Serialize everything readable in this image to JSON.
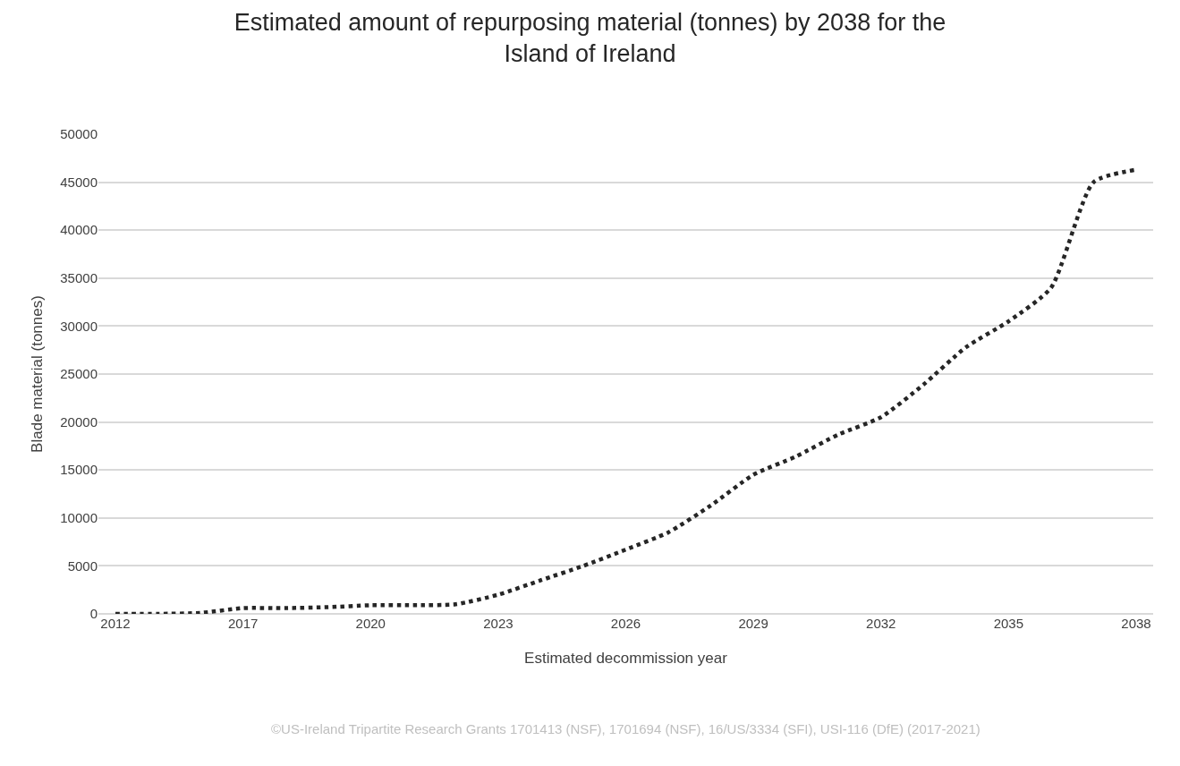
{
  "chart_data": {
    "type": "line",
    "title": "Estimated amount of repurposing material (tonnes) by 2038 for the Island of Ireland",
    "xlabel": "Estimated decommission year",
    "ylabel": "Blade material (tonnes)",
    "categories": [
      "2012",
      null,
      null,
      "2017",
      null,
      null,
      "2020",
      null,
      null,
      "2023",
      null,
      null,
      "2026",
      null,
      null,
      "2029",
      null,
      null,
      "2032",
      null,
      null,
      "2035",
      null,
      null,
      "2038"
    ],
    "series": [
      {
        "color": "#262626",
        "values": [
          0,
          0,
          100,
          600,
          600,
          700,
          900,
          900,
          1000,
          2000,
          3500,
          5000,
          6700,
          8500,
          11300,
          14500,
          16400,
          18700,
          20500,
          23900,
          27800,
          30500,
          34000,
          45000,
          46300
        ]
      }
    ],
    "ylim": [
      0,
      50000
    ],
    "yticks": [
      0,
      5000,
      10000,
      15000,
      20000,
      25000,
      30000,
      35000,
      40000,
      45000,
      50000
    ],
    "grid": "y",
    "line_style": "dotted",
    "annotations": [
      "©US-Ireland Tripartite Research Grants 1701413 (NSF), 1701694 (NSF), 16/US/3334 (SFI), USI-116 (DfE) (2017-2021)"
    ]
  }
}
